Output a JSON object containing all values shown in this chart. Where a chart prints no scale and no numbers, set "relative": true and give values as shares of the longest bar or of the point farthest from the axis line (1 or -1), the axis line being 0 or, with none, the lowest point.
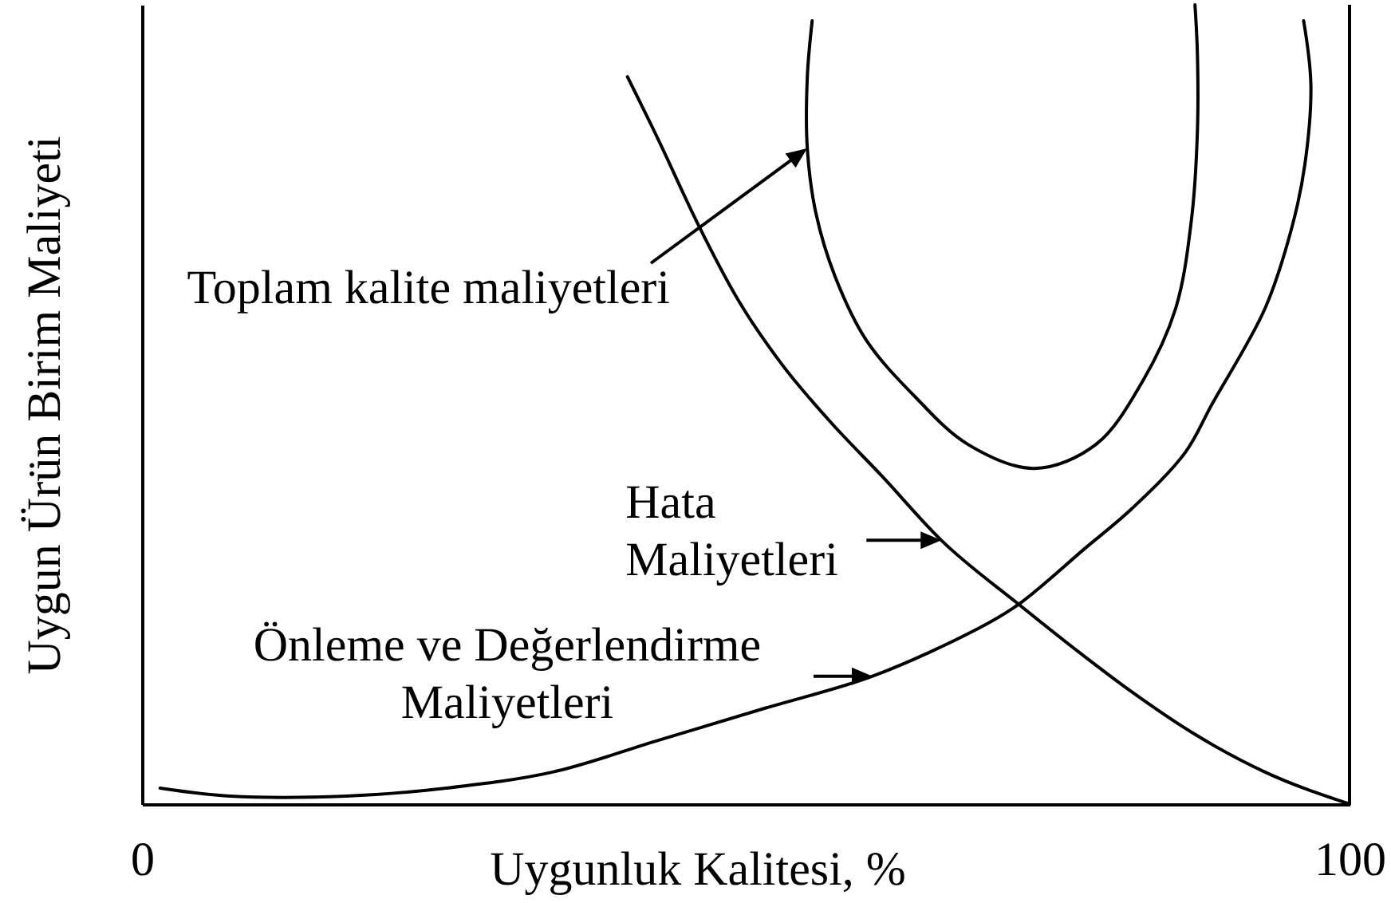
{
  "chart_data": {
    "type": "line",
    "xlabel": "Uygunluk Kalitesi, %",
    "ylabel": "Uygun Ürün Birim Maliyeti",
    "xlim": [
      0,
      100
    ],
    "xticks": [
      0,
      100
    ],
    "relative": true,
    "series": [
      {
        "color": "#000000",
        "x": [
          55.5,
          55.1,
          55.1,
          55.8,
          57.4,
          60.0,
          64.0,
          68.4,
          73.9,
          79.0,
          82.9,
          85.6,
          86.9,
          87.4,
          87.4,
          87.2
        ],
        "values": [
          0.98,
          0.91,
          0.82,
          0.74,
          0.66,
          0.58,
          0.51,
          0.45,
          0.42,
          0.45,
          0.53,
          0.62,
          0.73,
          0.84,
          0.94,
          1.0
        ]
      },
      {
        "color": "#000000",
        "x": [
          40.2,
          42.8,
          45.9,
          49.4,
          53.0,
          56.9,
          61.3,
          66.2,
          72.6,
          77.6,
          82.0,
          86.9,
          93.0,
          100
        ],
        "values": [
          0.91,
          0.83,
          0.73,
          0.63,
          0.55,
          0.48,
          0.41,
          0.33,
          0.25,
          0.19,
          0.14,
          0.09,
          0.04,
          0
        ]
      },
      {
        "color": "#000000",
        "x": [
          1.5,
          7.3,
          16.9,
          25.2,
          34.0,
          42.8,
          51.6,
          60.5,
          69.3,
          72.6,
          78.1,
          82.0,
          86.4,
          88.6,
          93.0,
          95.2,
          96.3,
          96.8,
          96.2
        ],
        "values": [
          0.02,
          0.01,
          0.01,
          0.02,
          0.04,
          0.08,
          0.12,
          0.16,
          0.22,
          0.25,
          0.32,
          0.37,
          0.44,
          0.5,
          0.62,
          0.72,
          0.8,
          0.9,
          0.98
        ]
      }
    ],
    "annotations": [
      "Toplam kalite maliyetleri",
      {
        "text": "Hata Maliyetleri",
        "x": 66.2,
        "y": 0.33
      },
      {
        "text": "Önleme ve Değerlendirme Maliyetleri",
        "x": 60.5,
        "y": 0.16
      }
    ],
    "ref_lines": [
      {
        "axis": "x",
        "value": 100,
        "color": "#000000"
      }
    ]
  }
}
